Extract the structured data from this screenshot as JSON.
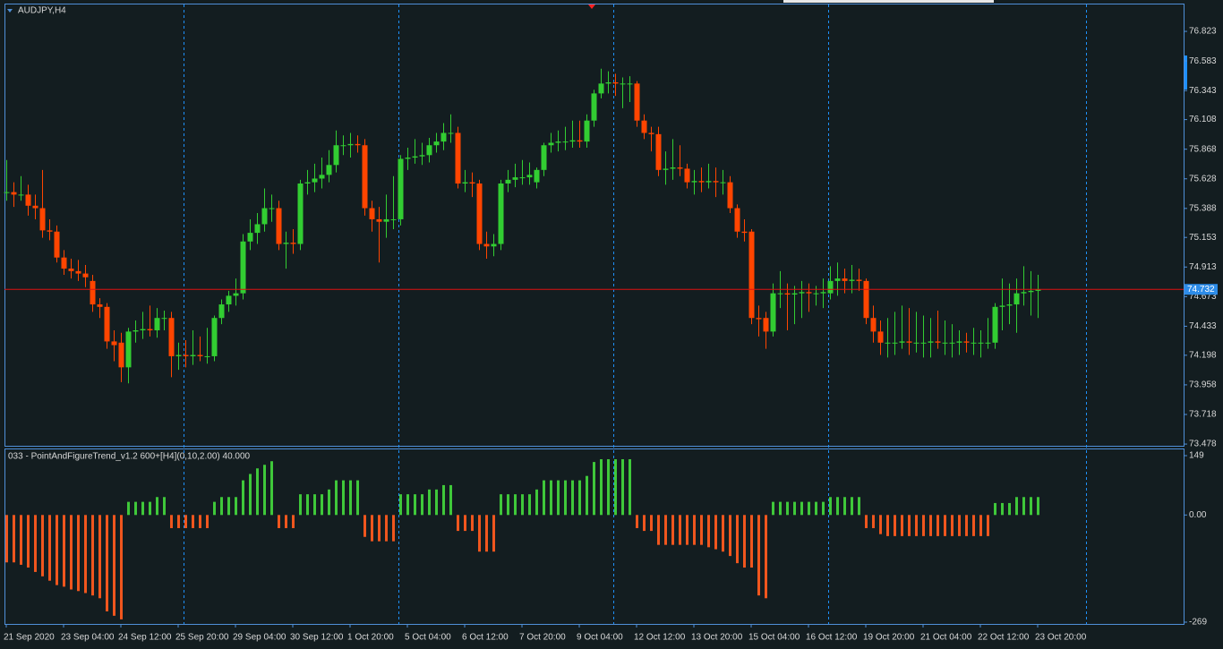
{
  "chart_data": [
    {
      "type": "candlestick",
      "title": "AUDJPY,H4",
      "ylim": [
        73.464,
        77.041
      ],
      "yticks": [
        73.478,
        73.718,
        73.958,
        74.198,
        74.433,
        74.673,
        74.913,
        75.153,
        75.388,
        75.628,
        75.868,
        76.108,
        76.343,
        76.583,
        76.823
      ],
      "up_color": "#32cd32",
      "down_color": "#ff4500",
      "last_price": 74.732,
      "last_price_color": "#e01010",
      "ohlc": [
        [
          75.52,
          75.78,
          75.45,
          75.52
        ],
        [
          75.52,
          75.6,
          75.4,
          75.5
        ],
        [
          75.5,
          75.65,
          75.45,
          75.5
        ],
        [
          75.5,
          75.58,
          75.33,
          75.41
        ],
        [
          75.41,
          75.5,
          75.3,
          75.39
        ],
        [
          75.39,
          75.7,
          75.15,
          75.21
        ],
        [
          75.21,
          75.3,
          75.13,
          75.2
        ],
        [
          75.2,
          75.25,
          74.95,
          74.99
        ],
        [
          74.99,
          75.05,
          74.85,
          74.9
        ],
        [
          74.9,
          74.98,
          74.82,
          74.88
        ],
        [
          74.88,
          74.97,
          74.8,
          74.86
        ],
        [
          74.86,
          74.93,
          74.75,
          74.83
        ],
        [
          74.8,
          74.85,
          74.55,
          74.61
        ],
        [
          74.61,
          74.66,
          74.5,
          74.59
        ],
        [
          74.59,
          74.62,
          74.25,
          74.31
        ],
        [
          74.31,
          74.4,
          74.15,
          74.28
        ],
        [
          74.3,
          74.38,
          73.98,
          74.1
        ],
        [
          74.1,
          74.42,
          73.97,
          74.39
        ],
        [
          74.39,
          74.48,
          74.3,
          74.4
        ],
        [
          74.4,
          74.55,
          74.33,
          74.41
        ],
        [
          74.41,
          74.6,
          74.35,
          74.4
        ],
        [
          74.4,
          74.58,
          74.34,
          74.5
        ],
        [
          74.5,
          74.56,
          74.4,
          74.5
        ],
        [
          74.5,
          74.55,
          74.02,
          74.19
        ],
        [
          74.19,
          74.3,
          74.08,
          74.2
        ],
        [
          74.2,
          74.32,
          74.1,
          74.19
        ],
        [
          74.19,
          74.4,
          74.12,
          74.2
        ],
        [
          74.2,
          74.35,
          74.15,
          74.19
        ],
        [
          74.19,
          74.42,
          74.13,
          74.19
        ],
        [
          74.19,
          74.52,
          74.15,
          74.5
        ],
        [
          74.5,
          74.65,
          74.45,
          74.61
        ],
        [
          74.61,
          74.72,
          74.55,
          74.68
        ],
        [
          74.68,
          74.82,
          74.6,
          74.7
        ],
        [
          74.7,
          75.18,
          74.65,
          75.12
        ],
        [
          75.12,
          75.3,
          75.05,
          75.19
        ],
        [
          75.19,
          75.35,
          75.1,
          75.26
        ],
        [
          75.26,
          75.55,
          75.2,
          75.39
        ],
        [
          75.39,
          75.5,
          75.28,
          75.39
        ],
        [
          75.39,
          75.45,
          75.05,
          75.1
        ],
        [
          75.1,
          75.2,
          74.9,
          75.11
        ],
        [
          75.11,
          75.22,
          75.02,
          75.1
        ],
        [
          75.1,
          75.62,
          75.05,
          75.59
        ],
        [
          75.59,
          75.7,
          75.5,
          75.6
        ],
        [
          75.6,
          75.75,
          75.52,
          75.63
        ],
        [
          75.63,
          75.8,
          75.55,
          75.66
        ],
        [
          75.66,
          75.86,
          75.6,
          75.74
        ],
        [
          75.74,
          76.02,
          75.68,
          75.9
        ],
        [
          75.9,
          75.98,
          75.82,
          75.9
        ],
        [
          75.9,
          76.0,
          75.8,
          75.91
        ],
        [
          75.91,
          75.98,
          75.84,
          75.9
        ],
        [
          75.9,
          75.95,
          75.33,
          75.39
        ],
        [
          75.39,
          75.45,
          75.2,
          75.3
        ],
        [
          75.3,
          75.4,
          74.95,
          75.28
        ],
        [
          75.28,
          75.5,
          75.15,
          75.3
        ],
        [
          75.3,
          75.65,
          75.22,
          75.3
        ],
        [
          75.3,
          75.82,
          75.25,
          75.79
        ],
        [
          75.79,
          75.88,
          75.7,
          75.8
        ],
        [
          75.8,
          75.95,
          75.75,
          75.81
        ],
        [
          75.81,
          75.92,
          75.74,
          75.82
        ],
        [
          75.82,
          75.96,
          75.76,
          75.9
        ],
        [
          75.9,
          76.0,
          75.84,
          75.93
        ],
        [
          75.93,
          76.08,
          75.86,
          76.0
        ],
        [
          76.0,
          76.15,
          75.92,
          76.0
        ],
        [
          76.0,
          76.05,
          75.55,
          75.59
        ],
        [
          75.59,
          75.7,
          75.52,
          75.6
        ],
        [
          75.6,
          75.68,
          75.48,
          75.59
        ],
        [
          75.59,
          75.62,
          75.05,
          75.1
        ],
        [
          75.1,
          75.2,
          74.98,
          75.08
        ],
        [
          75.08,
          75.18,
          75.0,
          75.1
        ],
        [
          75.1,
          75.62,
          75.05,
          75.59
        ],
        [
          75.59,
          75.7,
          75.52,
          75.62
        ],
        [
          75.62,
          75.75,
          75.56,
          75.64
        ],
        [
          75.64,
          75.78,
          75.58,
          75.64
        ],
        [
          75.64,
          75.76,
          75.58,
          75.66
        ],
        [
          75.6,
          75.72,
          75.55,
          75.7
        ],
        [
          75.7,
          75.92,
          75.65,
          75.9
        ],
        [
          75.9,
          76.0,
          75.84,
          75.92
        ],
        [
          75.92,
          76.02,
          75.85,
          75.93
        ],
        [
          75.93,
          76.05,
          75.86,
          75.93
        ],
        [
          75.93,
          76.1,
          75.88,
          75.94
        ],
        [
          75.94,
          76.1,
          75.88,
          75.93
        ],
        [
          75.93,
          76.15,
          75.88,
          76.1
        ],
        [
          76.1,
          76.35,
          76.05,
          76.32
        ],
        [
          76.32,
          76.52,
          76.28,
          76.4
        ],
        [
          76.4,
          76.5,
          76.32,
          76.41
        ],
        [
          76.41,
          76.48,
          76.3,
          76.4
        ],
        [
          76.4,
          76.45,
          76.2,
          76.4
        ],
        [
          76.4,
          76.46,
          76.25,
          76.4
        ],
        [
          76.4,
          76.42,
          76.05,
          76.1
        ],
        [
          76.1,
          76.15,
          75.95,
          76.0
        ],
        [
          76.0,
          76.05,
          75.85,
          75.99
        ],
        [
          75.99,
          76.05,
          75.65,
          75.7
        ],
        [
          75.7,
          75.85,
          75.58,
          75.71
        ],
        [
          75.71,
          75.95,
          75.62,
          75.72
        ],
        [
          75.72,
          75.9,
          75.65,
          75.71
        ],
        [
          75.71,
          75.75,
          75.55,
          75.6
        ],
        [
          75.6,
          75.7,
          75.5,
          75.61
        ],
        [
          75.61,
          75.72,
          75.52,
          75.6
        ],
        [
          75.6,
          75.75,
          75.55,
          75.61
        ],
        [
          75.61,
          75.72,
          75.48,
          75.6
        ],
        [
          75.6,
          75.7,
          75.5,
          75.6
        ],
        [
          75.6,
          75.65,
          75.35,
          75.39
        ],
        [
          75.39,
          75.42,
          75.15,
          75.2
        ],
        [
          75.2,
          75.3,
          75.12,
          75.19
        ],
        [
          75.2,
          75.22,
          74.45,
          74.5
        ],
        [
          74.5,
          74.6,
          74.35,
          74.49
        ],
        [
          74.5,
          74.55,
          74.25,
          74.39
        ],
        [
          74.39,
          74.78,
          74.35,
          74.7
        ],
        [
          74.7,
          74.88,
          74.58,
          74.7
        ],
        [
          74.7,
          74.78,
          74.4,
          74.69
        ],
        [
          74.69,
          74.76,
          74.45,
          74.7
        ],
        [
          74.7,
          74.8,
          74.5,
          74.71
        ],
        [
          74.71,
          74.78,
          74.55,
          74.7
        ],
        [
          74.7,
          74.76,
          74.6,
          74.7
        ],
        [
          74.7,
          74.82,
          74.58,
          74.71
        ],
        [
          74.7,
          74.92,
          74.65,
          74.8
        ],
        [
          74.8,
          74.95,
          74.68,
          74.82
        ],
        [
          74.82,
          74.9,
          74.7,
          74.8
        ],
        [
          74.8,
          74.93,
          74.7,
          74.81
        ],
        [
          74.81,
          74.9,
          74.72,
          74.8
        ],
        [
          74.8,
          74.82,
          74.45,
          74.5
        ],
        [
          74.5,
          74.6,
          74.3,
          74.39
        ],
        [
          74.39,
          74.48,
          74.2,
          74.3
        ],
        [
          74.3,
          74.5,
          74.18,
          74.3
        ],
        [
          74.3,
          74.55,
          74.2,
          74.3
        ],
        [
          74.3,
          74.6,
          74.25,
          74.31
        ],
        [
          74.31,
          74.58,
          74.2,
          74.3
        ],
        [
          74.3,
          74.55,
          74.22,
          74.3
        ],
        [
          74.3,
          74.52,
          74.18,
          74.3
        ],
        [
          74.3,
          74.5,
          74.18,
          74.31
        ],
        [
          74.31,
          74.56,
          74.25,
          74.3
        ],
        [
          74.3,
          74.48,
          74.2,
          74.3
        ],
        [
          74.3,
          74.45,
          74.18,
          74.3
        ],
        [
          74.3,
          74.4,
          74.2,
          74.31
        ],
        [
          74.31,
          74.38,
          74.22,
          74.3
        ],
        [
          74.3,
          74.42,
          74.2,
          74.3
        ],
        [
          74.3,
          74.4,
          74.18,
          74.3
        ],
        [
          74.3,
          74.5,
          74.25,
          74.3
        ],
        [
          74.3,
          74.62,
          74.25,
          74.59
        ],
        [
          74.59,
          74.82,
          74.4,
          74.6
        ],
        [
          74.6,
          74.78,
          74.45,
          74.61
        ],
        [
          74.61,
          74.82,
          74.38,
          74.7
        ],
        [
          74.7,
          74.92,
          74.6,
          74.71
        ],
        [
          74.71,
          74.88,
          74.52,
          74.72
        ],
        [
          74.72,
          74.85,
          74.5,
          74.73
        ]
      ]
    },
    {
      "type": "histogram",
      "title": "033 - PointAndFigureTrend_v1.2 600+[H4](0,10,2.00) 40.000",
      "ylim": [
        -273.5,
        164.7
      ],
      "yticks": [
        -269,
        {
          "value": 0,
          "label": "0.00"
        },
        149
      ],
      "up_color": "#3fc83a",
      "down_color": "#f0561e",
      "values": [
        -119,
        -119,
        -125,
        -132,
        -143,
        -154,
        -165,
        -176,
        -180,
        -187,
        -191,
        -196,
        -202,
        -209,
        -242,
        -253,
        -262,
        33,
        33,
        33,
        33,
        45,
        45,
        -33,
        -33,
        -33,
        -33,
        -33,
        -33,
        33,
        45,
        45,
        45,
        87,
        103,
        117,
        126,
        135,
        -33,
        -33,
        -33,
        52,
        52,
        52,
        52,
        64,
        87,
        87,
        87,
        87,
        -55,
        -66,
        -66,
        -66,
        -66,
        52,
        52,
        52,
        52,
        64,
        64,
        75,
        75,
        -40,
        -40,
        -40,
        -92,
        -92,
        -92,
        52,
        52,
        52,
        52,
        52,
        64,
        87,
        87,
        87,
        87,
        87,
        87,
        98,
        133,
        140,
        140,
        140,
        140,
        140,
        -33,
        -40,
        -40,
        -75,
        -75,
        -75,
        -75,
        -75,
        -75,
        -75,
        -81,
        -86,
        -92,
        -103,
        -121,
        -132,
        -132,
        -202,
        -209,
        33,
        33,
        33,
        33,
        33,
        33,
        33,
        33,
        45,
        45,
        45,
        45,
        45,
        -33,
        -33,
        -48,
        -53,
        -53,
        -53,
        -53,
        -53,
        -53,
        -53,
        -53,
        -53,
        -53,
        -53,
        -53,
        -53,
        -53,
        -53,
        30,
        30,
        30,
        45,
        45,
        45,
        45
      ],
      "categories": [
        "21 Sep 2020",
        null,
        null,
        null,
        null,
        null,
        null,
        null,
        "23 Sep 04:00",
        null,
        null,
        null,
        null,
        null,
        null,
        null,
        "24 Sep 12:00",
        null,
        null,
        null,
        null,
        null,
        null,
        null,
        "25 Sep 20:00",
        null,
        null,
        null,
        null,
        null,
        null,
        null,
        "29 Sep 04:00",
        null,
        null,
        null,
        null,
        null,
        null,
        null,
        "30 Sep 12:00",
        null,
        null,
        null,
        null,
        null,
        null,
        null,
        "1 Oct 20:00",
        null,
        null,
        null,
        null,
        null,
        null,
        null,
        "5 Oct 04:00",
        null,
        null,
        null,
        null,
        null,
        null,
        null,
        "6 Oct 12:00",
        null,
        null,
        null,
        null,
        null,
        null,
        null,
        "7 Oct 20:00",
        null,
        null,
        null,
        null,
        null,
        null,
        null,
        "9 Oct 04:00",
        null,
        null,
        null,
        null,
        null,
        null,
        null,
        "12 Oct 12:00",
        null,
        null,
        null,
        null,
        null,
        null,
        null,
        "13 Oct 20:00",
        null,
        null,
        null,
        null,
        null,
        null,
        null,
        "15 Oct 04:00",
        null,
        null,
        null,
        null,
        null,
        null,
        null,
        "16 Oct 12:00",
        null,
        null,
        null,
        null,
        null,
        null,
        null,
        "19 Oct 20:00",
        null,
        null,
        null,
        null,
        null,
        null,
        null,
        "21 Oct 04:00",
        null,
        null,
        null,
        null,
        null,
        null,
        null,
        "22 Oct 12:00",
        null,
        null,
        null,
        null,
        null,
        null,
        null,
        "23 Oct 20:00"
      ]
    }
  ]
}
